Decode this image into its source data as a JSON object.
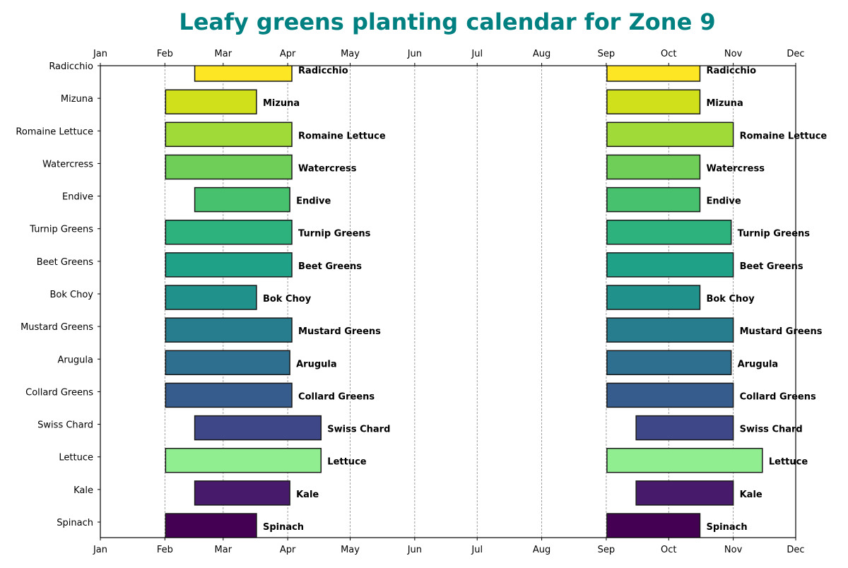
{
  "chart_data": {
    "type": "bar",
    "orientation": "horizontal-gantt",
    "title": "Leafy greens planting calendar for Zone 9",
    "title_color": "#008080",
    "xlabel": "",
    "ylabel": "",
    "x_ticks": [
      "Jan",
      "Feb",
      "Mar",
      "Apr",
      "May",
      "Jun",
      "Jul",
      "Aug",
      "Sep",
      "Oct",
      "Nov",
      "Dec"
    ],
    "x_tick_dates": [
      "01-01",
      "02-01",
      "03-01",
      "04-01",
      "05-01",
      "06-01",
      "07-01",
      "08-01",
      "09-01",
      "10-01",
      "11-01",
      "12-01"
    ],
    "xlim": [
      "01-01",
      "12-01"
    ],
    "grid": "vertical dashed",
    "bar_labels": "bold crop name to the right of each bar",
    "crops": [
      {
        "name": "Spinach",
        "color": "#440154",
        "periods": [
          [
            "02-01",
            "03-17"
          ],
          [
            "09-01",
            "10-16"
          ]
        ]
      },
      {
        "name": "Kale",
        "color": "#481a6c",
        "periods": [
          [
            "02-15",
            "04-02"
          ],
          [
            "09-15",
            "11-01"
          ]
        ]
      },
      {
        "name": "Lettuce",
        "color": "#90ee90",
        "periods": [
          [
            "02-01",
            "04-17"
          ],
          [
            "09-01",
            "11-15"
          ]
        ]
      },
      {
        "name": "Swiss Chard",
        "color": "#3e4787",
        "periods": [
          [
            "02-15",
            "04-17"
          ],
          [
            "09-15",
            "11-01"
          ]
        ]
      },
      {
        "name": "Collard Greens",
        "color": "#355c8c",
        "periods": [
          [
            "02-01",
            "04-03"
          ],
          [
            "09-01",
            "11-01"
          ]
        ]
      },
      {
        "name": "Arugula",
        "color": "#2e6e8e",
        "periods": [
          [
            "02-01",
            "04-02"
          ],
          [
            "09-01",
            "10-31"
          ]
        ]
      },
      {
        "name": "Mustard Greens",
        "color": "#277d8e",
        "periods": [
          [
            "02-01",
            "04-03"
          ],
          [
            "09-01",
            "11-01"
          ]
        ]
      },
      {
        "name": "Bok Choy",
        "color": "#21918c",
        "periods": [
          [
            "02-01",
            "03-17"
          ],
          [
            "09-01",
            "10-16"
          ]
        ]
      },
      {
        "name": "Beet Greens",
        "color": "#1fa187",
        "periods": [
          [
            "02-01",
            "04-03"
          ],
          [
            "09-01",
            "11-01"
          ]
        ]
      },
      {
        "name": "Turnip Greens",
        "color": "#2db27d",
        "periods": [
          [
            "02-01",
            "04-03"
          ],
          [
            "09-01",
            "10-31"
          ]
        ]
      },
      {
        "name": "Endive",
        "color": "#48c16e",
        "periods": [
          [
            "02-15",
            "04-02"
          ],
          [
            "09-01",
            "10-16"
          ]
        ]
      },
      {
        "name": "Watercress",
        "color": "#6ece58",
        "periods": [
          [
            "02-01",
            "04-03"
          ],
          [
            "09-01",
            "10-16"
          ]
        ]
      },
      {
        "name": "Romaine Lettuce",
        "color": "#a0da39",
        "periods": [
          [
            "02-01",
            "04-03"
          ],
          [
            "09-01",
            "11-01"
          ]
        ]
      },
      {
        "name": "Mizuna",
        "color": "#d0e11c",
        "periods": [
          [
            "02-01",
            "03-17"
          ],
          [
            "09-01",
            "10-16"
          ]
        ]
      },
      {
        "name": "Radicchio",
        "color": "#fde725",
        "periods": [
          [
            "02-15",
            "04-03"
          ],
          [
            "09-01",
            "10-16"
          ]
        ]
      }
    ]
  }
}
